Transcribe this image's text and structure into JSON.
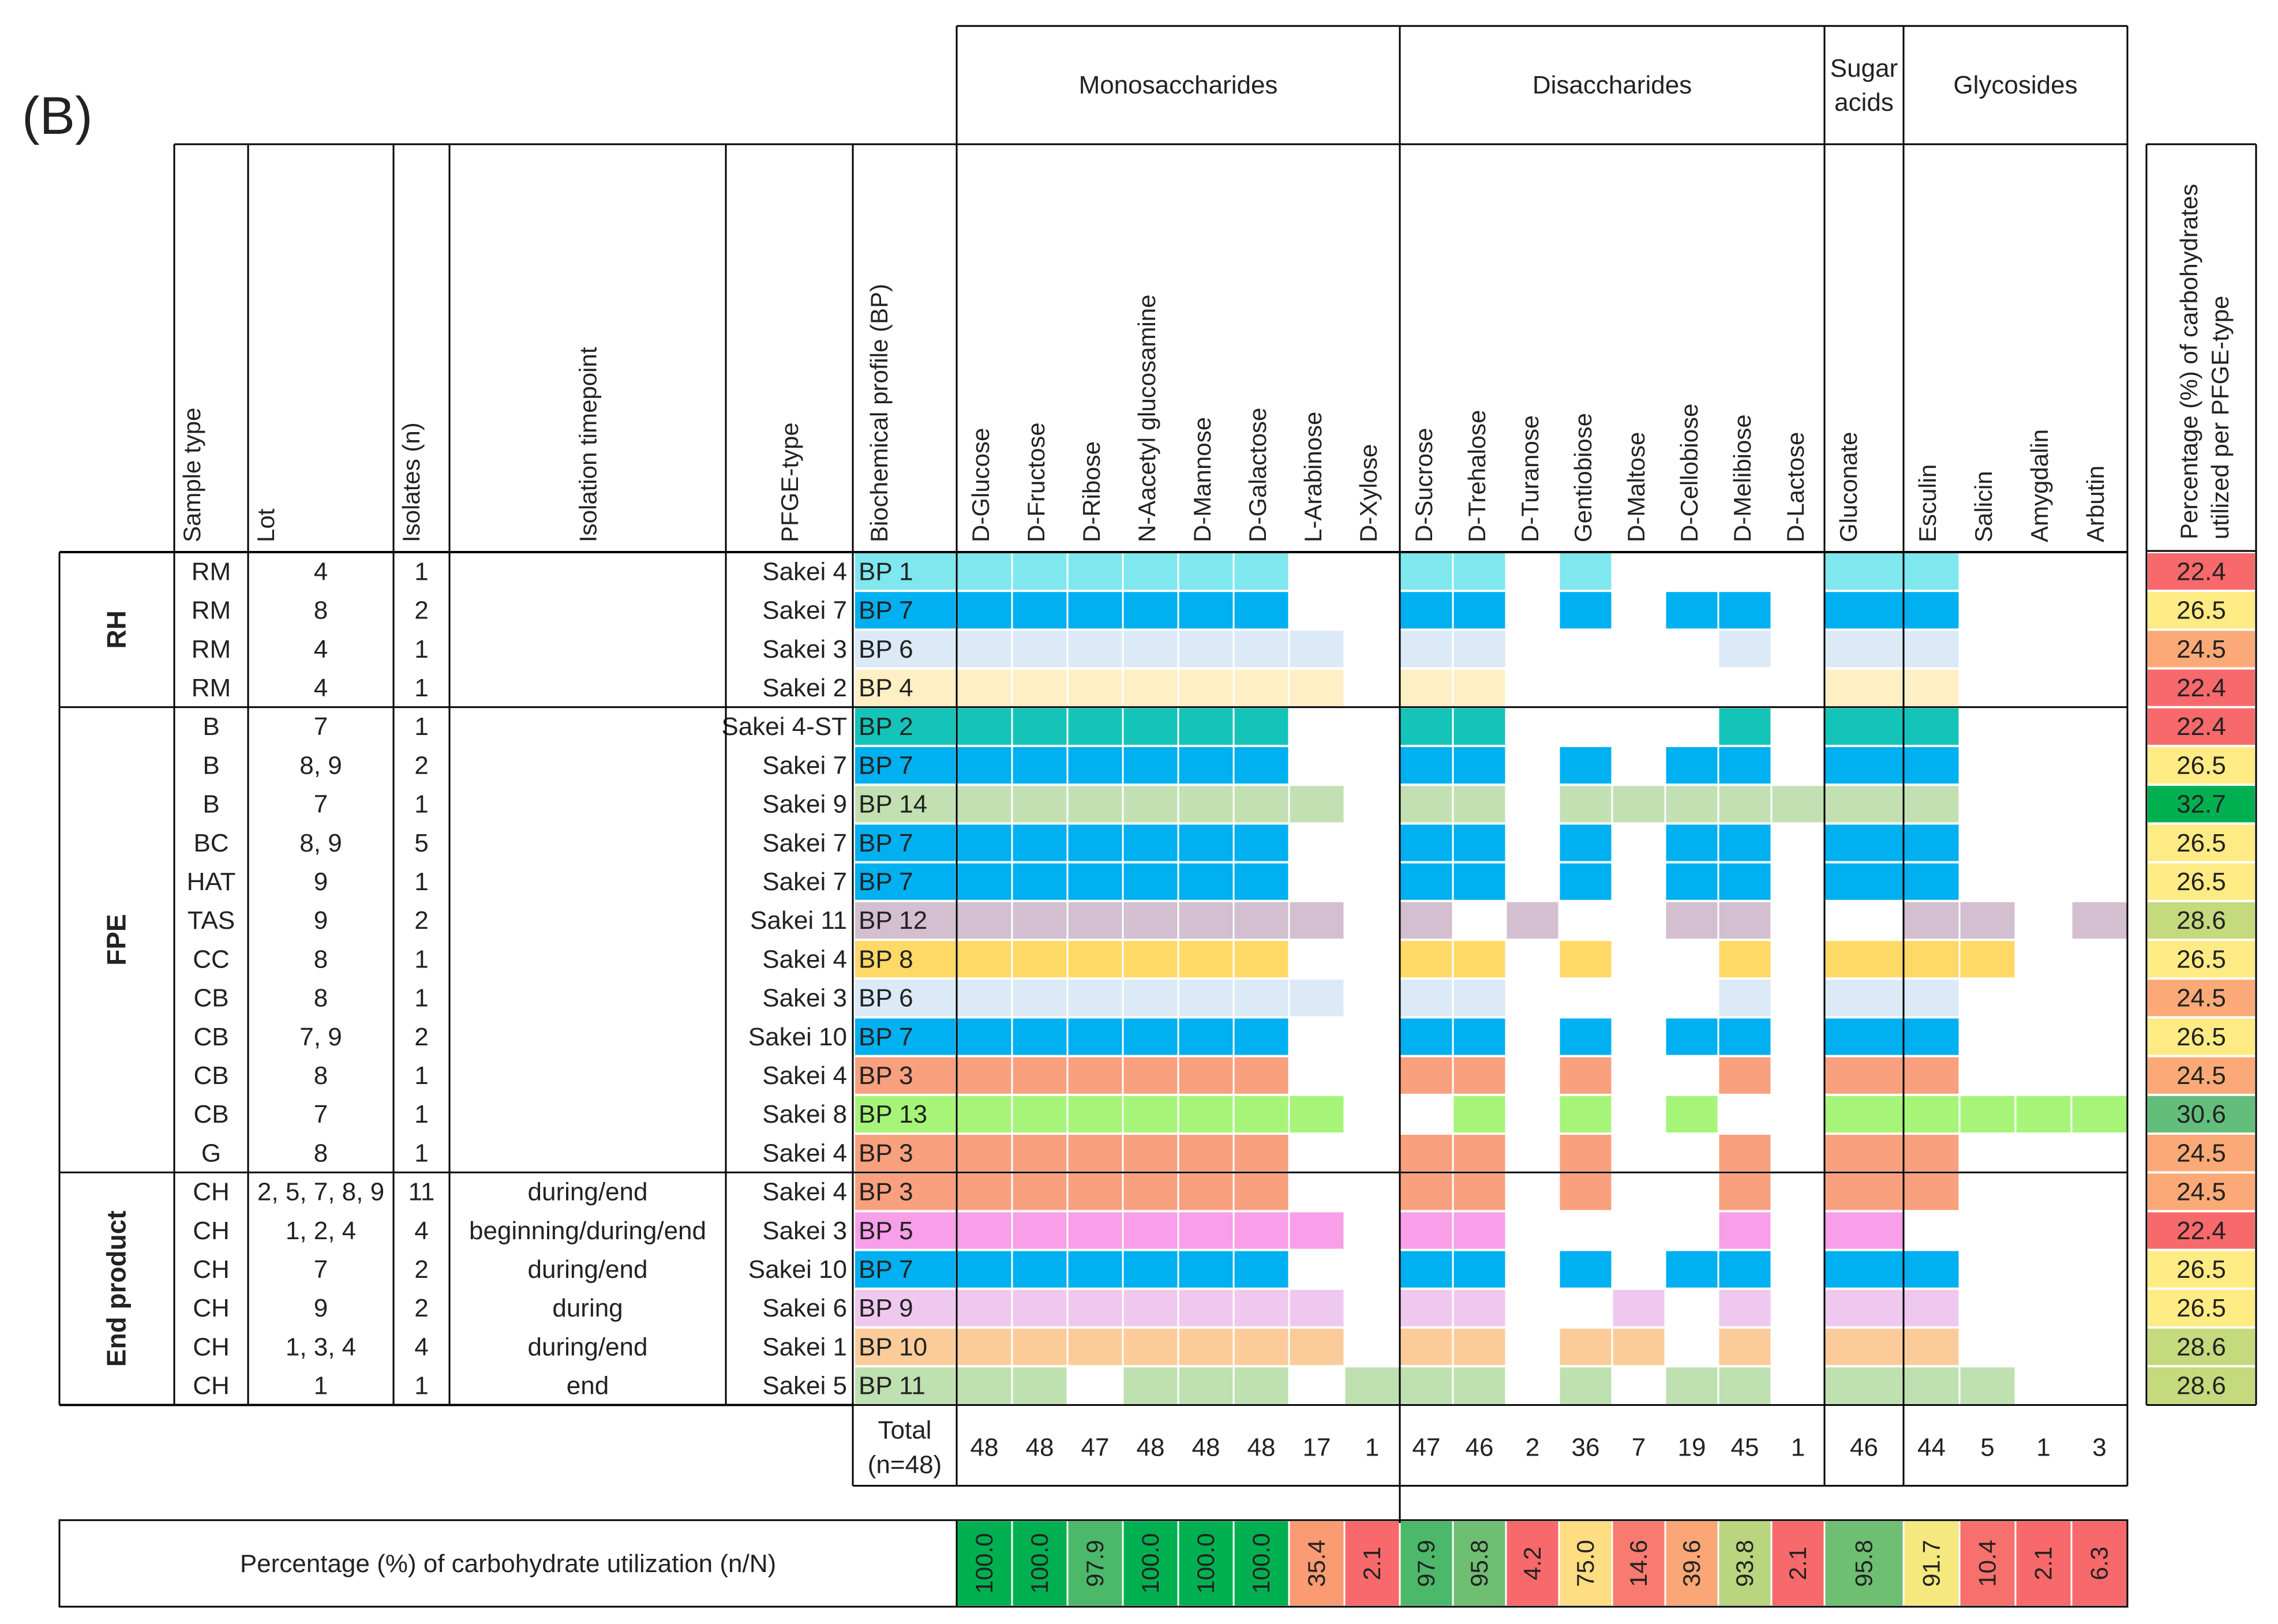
{
  "panel_label": "(B)",
  "group_headers": {
    "mono": "Monosaccharides",
    "di": "Disaccharides",
    "sugar_acids_line1": "Sugar",
    "sugar_acids_line2": "acids",
    "glyco": "Glycosides"
  },
  "meta_headers": [
    "Sample type",
    "Lot",
    "Isolates (n)",
    "Isolation timepoint",
    "PFGE-type",
    "Biochemical profile (BP)"
  ],
  "carbohydrates": [
    "D-Glucose",
    "D-Fructose",
    "D-Ribose",
    "N-Aacetyl glucosamine",
    "D-Mannose",
    "D-Galactose",
    "L-Arabinose",
    "D-Xylose",
    "D-Sucrose",
    "D-Trehalose",
    "D-Turanose",
    "Gentiobiose",
    "D-Maltose",
    "D-Cellobiose",
    "D-Melibiose",
    "D-Lactose",
    "Gluconate",
    "Esculin",
    "Salicin",
    "Amygdalin",
    "Arbutin"
  ],
  "pct_header_line1": "Percentage (%) of carbohydrates",
  "pct_header_line2": "utilized per PFGE-type",
  "sections": [
    {
      "label": "RH",
      "rows": 4
    },
    {
      "label": "FPE",
      "rows": 12
    },
    {
      "label": "End product",
      "rows": 6
    }
  ],
  "profile_colors": {
    "BP 1": "#7EE8EE",
    "BP 2": "#14C4B8",
    "BP 3": "#F9A07E",
    "BP 4": "#FEEFC5",
    "BP 5": "#F99EE8",
    "BP 6": "#DBEAF6",
    "BP 7": "#00B0F0",
    "BP 8": "#FFD966",
    "BP 9": "#EFC8EF",
    "BP 10": "#FBCC9A",
    "BP 11": "#BFE0B0",
    "BP 12": "#D3BFD0",
    "BP 13": "#A6F579",
    "BP 14": "#C3E0B3"
  },
  "rows": [
    {
      "sample": "RM",
      "lot": "4",
      "isolates": "1",
      "timepoint": "",
      "pfge": "Sakei 4",
      "bp": "BP 1",
      "pattern": "111111001101000011000",
      "pct": "22.4",
      "pct_color": "#F8696B"
    },
    {
      "sample": "RM",
      "lot": "8",
      "isolates": "2",
      "timepoint": "",
      "pfge": "Sakei 7",
      "bp": "BP 7",
      "pattern": "111111001101011011000",
      "pct": "26.5",
      "pct_color": "#FFEB84"
    },
    {
      "sample": "RM",
      "lot": "4",
      "isolates": "1",
      "timepoint": "",
      "pfge": "Sakei 3",
      "bp": "BP 6",
      "pattern": "111111101100001011000",
      "pct": "24.5",
      "pct_color": "#FBAA77"
    },
    {
      "sample": "RM",
      "lot": "4",
      "isolates": "1",
      "timepoint": "",
      "pfge": "Sakei 2",
      "bp": "BP 4",
      "pattern": "111111101100000011000",
      "pct": "22.4",
      "pct_color": "#F8696B"
    },
    {
      "sample": "B",
      "lot": "7",
      "isolates": "1",
      "timepoint": "",
      "pfge": "Sakei 4-ST",
      "bp": "BP 2",
      "pattern": "111111001100001011000",
      "pct": "22.4",
      "pct_color": "#F8696B"
    },
    {
      "sample": "B",
      "lot": "8, 9",
      "isolates": "2",
      "timepoint": "",
      "pfge": "Sakei 7",
      "bp": "BP 7",
      "pattern": "111111001101011011000",
      "pct": "26.5",
      "pct_color": "#FFEB84"
    },
    {
      "sample": "B",
      "lot": "7",
      "isolates": "1",
      "timepoint": "",
      "pfge": "Sakei 9",
      "bp": "BP 14",
      "pattern": "111111101101111111000",
      "pct": "32.7",
      "pct_color": "#00B050"
    },
    {
      "sample": "BC",
      "lot": "8, 9",
      "isolates": "5",
      "timepoint": "",
      "pfge": "Sakei 7",
      "bp": "BP 7",
      "pattern": "111111001101011011000",
      "pct": "26.5",
      "pct_color": "#FFEB84"
    },
    {
      "sample": "HAT",
      "lot": "9",
      "isolates": "1",
      "timepoint": "",
      "pfge": "Sakei 7",
      "bp": "BP 7",
      "pattern": "111111001101011011000",
      "pct": "26.5",
      "pct_color": "#FFEB84"
    },
    {
      "sample": "TAS",
      "lot": "9",
      "isolates": "2",
      "timepoint": "",
      "pfge": "Sakei 11",
      "bp": "BP 12",
      "pattern": "111111101010011001101",
      "pct": "28.6",
      "pct_color": "#C4DA7D"
    },
    {
      "sample": "CC",
      "lot": "8",
      "isolates": "1",
      "timepoint": "",
      "pfge": "Sakei 4",
      "bp": "BP 8",
      "pattern": "111111001101001011100",
      "pct": "26.5",
      "pct_color": "#FFEB84"
    },
    {
      "sample": "CB",
      "lot": "8",
      "isolates": "1",
      "timepoint": "",
      "pfge": "Sakei 3",
      "bp": "BP 6",
      "pattern": "111111101100001011000",
      "pct": "24.5",
      "pct_color": "#FBAA77"
    },
    {
      "sample": "CB",
      "lot": "7, 9",
      "isolates": "2",
      "timepoint": "",
      "pfge": "Sakei 10",
      "bp": "BP 7",
      "pattern": "111111001101011011000",
      "pct": "26.5",
      "pct_color": "#FFEB84"
    },
    {
      "sample": "CB",
      "lot": "8",
      "isolates": "1",
      "timepoint": "",
      "pfge": "Sakei 4",
      "bp": "BP 3",
      "pattern": "111111001101001011000",
      "pct": "24.5",
      "pct_color": "#FBAA77"
    },
    {
      "sample": "CB",
      "lot": "7",
      "isolates": "1",
      "timepoint": "",
      "pfge": "Sakei 8",
      "bp": "BP 13",
      "pattern": "111111100101010011111",
      "pct": "30.6",
      "pct_color": "#63BE7B"
    },
    {
      "sample": "G",
      "lot": "8",
      "isolates": "1",
      "timepoint": "",
      "pfge": "Sakei 4",
      "bp": "BP 3",
      "pattern": "111111001101001011000",
      "pct": "24.5",
      "pct_color": "#FBAA77"
    },
    {
      "sample": "CH",
      "lot": "2, 5, 7, 8, 9",
      "isolates": "11",
      "timepoint": "during/end",
      "pfge": "Sakei 4",
      "bp": "BP 3",
      "pattern": "111111001101001011000",
      "pct": "24.5",
      "pct_color": "#FBAA77"
    },
    {
      "sample": "CH",
      "lot": "1, 2, 4",
      "isolates": "4",
      "timepoint": "beginning/during/end",
      "pfge": "Sakei 3",
      "bp": "BP 5",
      "pattern": "111111101100001010000",
      "pct": "22.4",
      "pct_color": "#F8696B"
    },
    {
      "sample": "CH",
      "lot": "7",
      "isolates": "2",
      "timepoint": "during/end",
      "pfge": "Sakei 10",
      "bp": "BP 7",
      "pattern": "111111001101011011000",
      "pct": "26.5",
      "pct_color": "#FFEB84"
    },
    {
      "sample": "CH",
      "lot": "9",
      "isolates": "2",
      "timepoint": "during",
      "pfge": "Sakei 6",
      "bp": "BP 9",
      "pattern": "111111101100101011000",
      "pct": "26.5",
      "pct_color": "#FFEB84"
    },
    {
      "sample": "CH",
      "lot": "1, 3, 4",
      "isolates": "4",
      "timepoint": "during/end",
      "pfge": "Sakei 1",
      "bp": "BP 10",
      "pattern": "111111101101101011000",
      "pct": "28.6",
      "pct_color": "#C4DA7D"
    },
    {
      "sample": "CH",
      "lot": "1",
      "isolates": "1",
      "timepoint": "end",
      "pfge": "Sakei 5",
      "bp": "BP 11",
      "pattern": "110111011101011011100",
      "pct": "28.6",
      "pct_color": "#C4DA7D"
    }
  ],
  "total_label_line1": "Total",
  "total_label_line2": "(n=48)",
  "totals": [
    "48",
    "48",
    "47",
    "48",
    "48",
    "48",
    "17",
    "1",
    "47",
    "46",
    "2",
    "36",
    "7",
    "19",
    "45",
    "1",
    "46",
    "44",
    "5",
    "1",
    "3"
  ],
  "utilization_label": "Percentage (%) of carbohydrate utilization (n/N)",
  "utilization": [
    {
      "value": "100.0",
      "color": "#00B050"
    },
    {
      "value": "100.0",
      "color": "#00B050"
    },
    {
      "value": "97.9",
      "color": "#4CB86A"
    },
    {
      "value": "100.0",
      "color": "#00B050"
    },
    {
      "value": "100.0",
      "color": "#00B050"
    },
    {
      "value": "100.0",
      "color": "#00B050"
    },
    {
      "value": "35.4",
      "color": "#FA9B73"
    },
    {
      "value": "2.1",
      "color": "#F8696B"
    },
    {
      "value": "97.9",
      "color": "#4CB86A"
    },
    {
      "value": "95.8",
      "color": "#6EBF72"
    },
    {
      "value": "4.2",
      "color": "#F8696B"
    },
    {
      "value": "75.0",
      "color": "#FFDD82"
    },
    {
      "value": "14.6",
      "color": "#F97A6E"
    },
    {
      "value": "39.6",
      "color": "#FBA676"
    },
    {
      "value": "93.8",
      "color": "#B9D57E"
    },
    {
      "value": "2.1",
      "color": "#F8696B"
    },
    {
      "value": "95.8",
      "color": "#6EBF72"
    },
    {
      "value": "91.7",
      "color": "#F5E87F"
    },
    {
      "value": "10.4",
      "color": "#F8706C"
    },
    {
      "value": "2.1",
      "color": "#F8696B"
    },
    {
      "value": "6.3",
      "color": "#F8696B"
    }
  ]
}
